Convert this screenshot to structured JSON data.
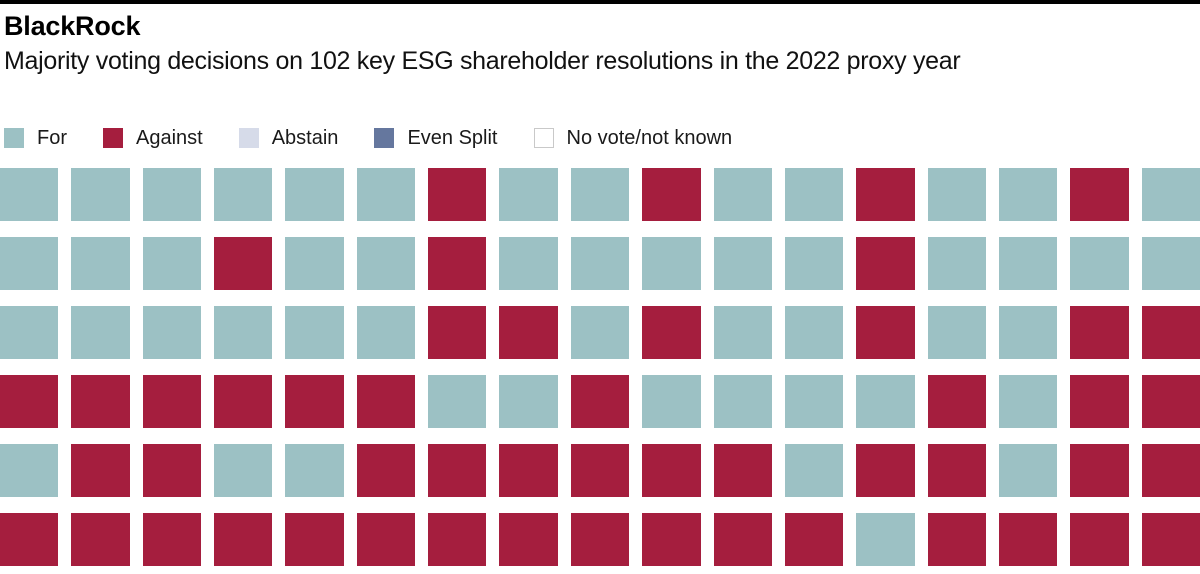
{
  "header": {
    "brand": "BlackRock",
    "subtitle": "Majority voting decisions on 102 key ESG shareholder resolutions in the 2022 proxy year"
  },
  "colors": {
    "top_bar": "#000000",
    "background": "#ffffff",
    "text": "#1a1a1a",
    "for_teal": "#9cc1c4",
    "against_crimson": "#a51e3e",
    "abstain_lavender": "#d6dbe9",
    "even_split_blue": "#65779e",
    "no_vote_white": "#ffffff",
    "no_vote_border": "#c9c9c9"
  },
  "legend": {
    "items": [
      {
        "code": "F",
        "label": "For",
        "color": "#9cc1c4",
        "border": ""
      },
      {
        "code": "A",
        "label": "Against",
        "color": "#a51e3e",
        "border": ""
      },
      {
        "code": "B",
        "label": "Abstain",
        "color": "#d6dbe9",
        "border": ""
      },
      {
        "code": "E",
        "label": "Even Split",
        "color": "#65779e",
        "border": ""
      },
      {
        "code": "N",
        "label": "No vote/not known",
        "color": "#ffffff",
        "border": "#c9c9c9"
      }
    ]
  },
  "chart_data": {
    "type": "heatmap",
    "subtype": "waffle",
    "title": "BlackRock",
    "subtitle": "Majority voting decisions on 102 key ESG shareholder resolutions in the 2022 proxy year",
    "rows": 6,
    "cols": 17,
    "total_cells": 102,
    "legend_position": "top",
    "code_labels": {
      "F": "For",
      "A": "Against",
      "B": "Abstain",
      "E": "Even Split",
      "N": "No vote/not known"
    },
    "cell_codes_by_row": [
      "FFFFFFAFFAFFAFFAF",
      "FFFAFFAFFFFFAFFFF",
      "FFFFFFAAFAFFAFFAA",
      "AAAAAAFFAFFFFAFAA",
      "FAAFFAAAAAAFAAFAA",
      "AAAAAAAAAAAAFAAAA"
    ],
    "counts": {
      "For": 51,
      "Against": 51,
      "Abstain": 0,
      "Even Split": 0,
      "No vote/not known": 0
    }
  }
}
